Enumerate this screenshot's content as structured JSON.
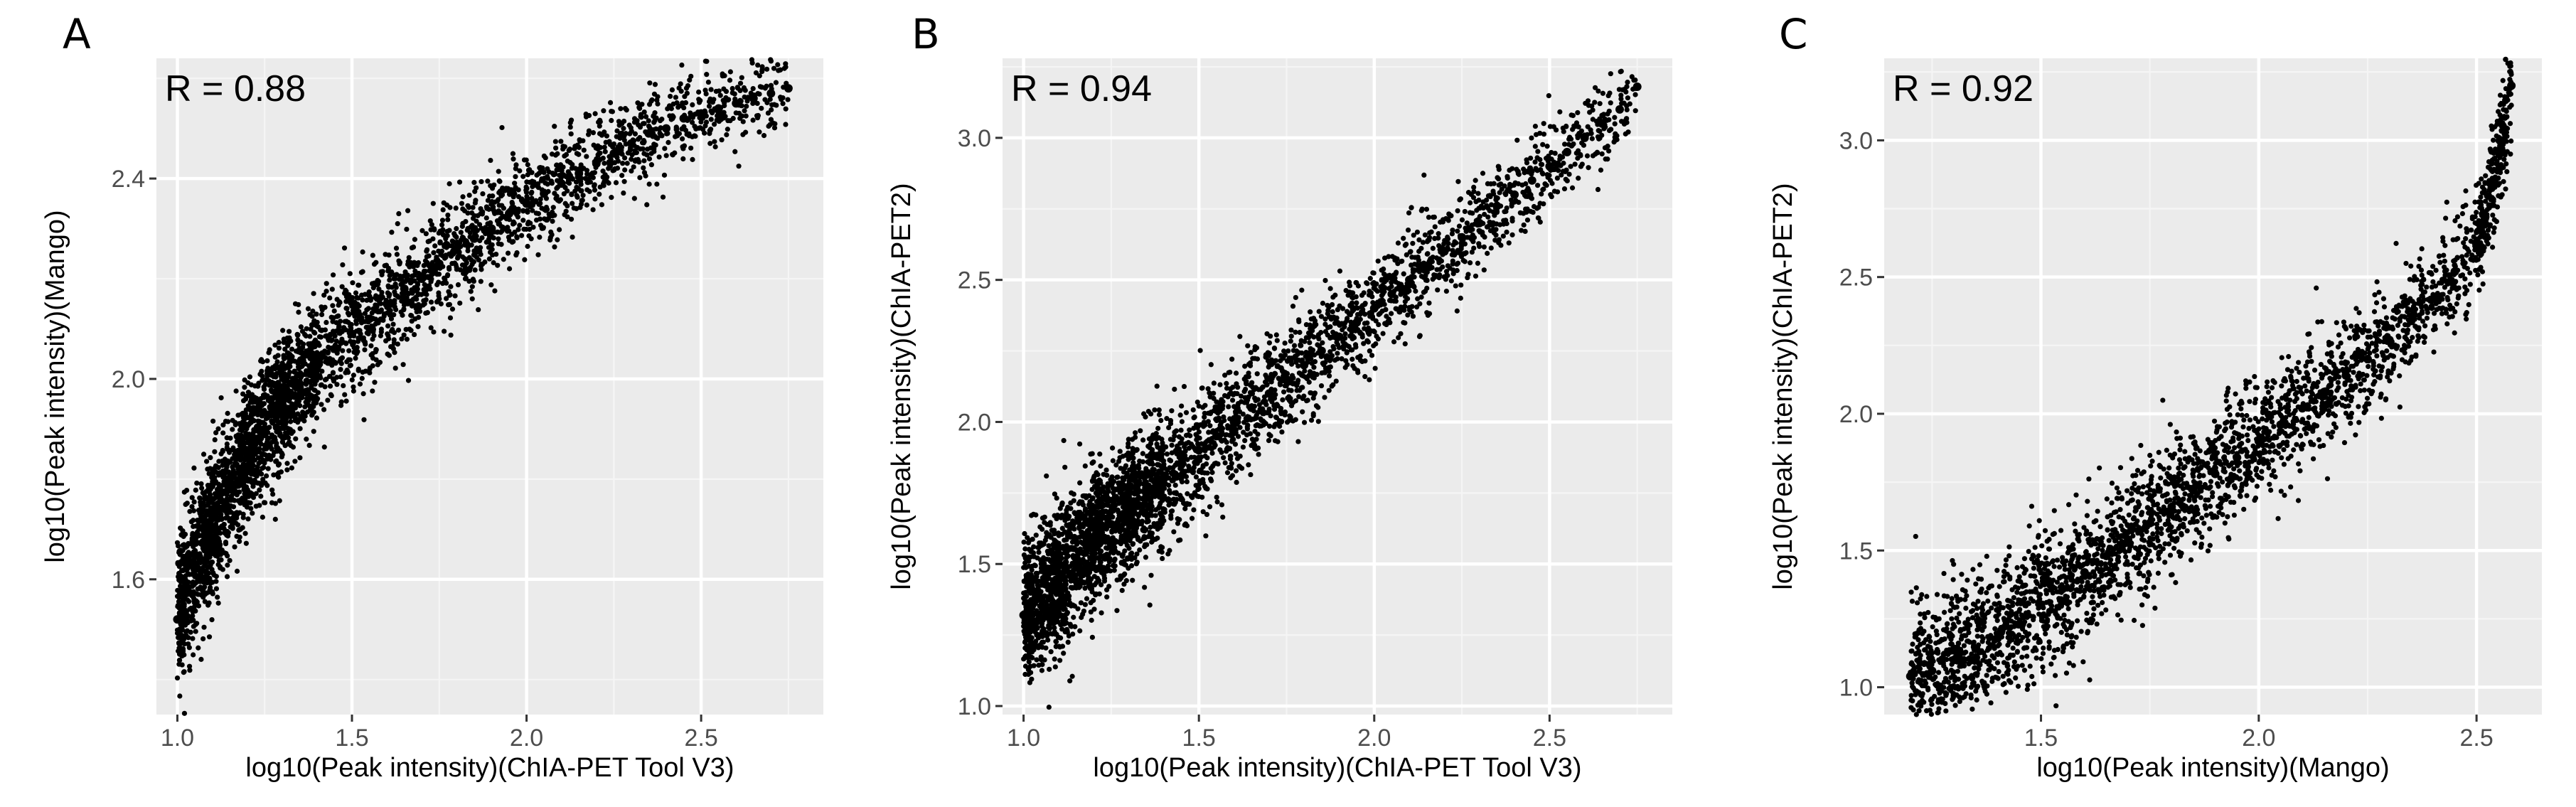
{
  "chart_data": [
    {
      "type": "scatter",
      "panel_label": "A",
      "annotation": "R = 0.88",
      "xlabel": "log10(Peak intensity)(ChIA-PET Tool V3)",
      "ylabel": "log10(Peak intensity)(Mango)",
      "xlim": [
        0.94,
        2.85
      ],
      "ylim": [
        1.33,
        2.64
      ],
      "xticks": [
        1.0,
        1.5,
        2.0,
        2.5
      ],
      "xtick_labels": [
        "1.0",
        "1.5",
        "2.0",
        "2.5"
      ],
      "yticks": [
        1.6,
        2.0,
        2.4
      ],
      "ytick_labels": [
        "1.6",
        "2.0",
        "2.4"
      ],
      "grid": true,
      "correlation": 0.88,
      "x": [
        1.0,
        1.02,
        1.05,
        1.08,
        1.1,
        1.12,
        1.15,
        1.18,
        1.2,
        1.22,
        1.25,
        1.28,
        1.3,
        1.32,
        1.35,
        1.38,
        1.4,
        1.45,
        1.5,
        1.55,
        1.6,
        1.65,
        1.7,
        1.75,
        1.8,
        1.85,
        1.9,
        1.95,
        2.0,
        2.05,
        2.1,
        2.15,
        2.2,
        2.25,
        2.3,
        2.35,
        2.4,
        2.45,
        2.5,
        2.55,
        2.6,
        2.65,
        2.7,
        2.75
      ],
      "y": [
        1.52,
        1.58,
        1.62,
        1.66,
        1.7,
        1.74,
        1.78,
        1.82,
        1.85,
        1.87,
        1.9,
        1.93,
        1.95,
        1.97,
        1.99,
        2.01,
        2.03,
        2.06,
        2.09,
        2.12,
        2.15,
        2.18,
        2.2,
        2.23,
        2.26,
        2.28,
        2.3,
        2.33,
        2.35,
        2.37,
        2.39,
        2.41,
        2.43,
        2.45,
        2.47,
        2.49,
        2.5,
        2.52,
        2.53,
        2.54,
        2.55,
        2.56,
        2.57,
        2.58
      ],
      "point_color": "#000000"
    },
    {
      "type": "scatter",
      "panel_label": "B",
      "annotation": "R = 0.94",
      "xlabel": "log10(Peak intensity)(ChIA-PET Tool V3)",
      "ylabel": "log10(Peak intensity)(ChIA-PET2)",
      "xlim": [
        0.94,
        2.85
      ],
      "ylim": [
        0.97,
        3.28
      ],
      "xticks": [
        1.0,
        1.5,
        2.0,
        2.5
      ],
      "xtick_labels": [
        "1.0",
        "1.5",
        "2.0",
        "2.5"
      ],
      "yticks": [
        1.0,
        1.5,
        2.0,
        2.5,
        3.0
      ],
      "ytick_labels": [
        "1.0",
        "1.5",
        "2.0",
        "2.5",
        "3.0"
      ],
      "grid": true,
      "correlation": 0.94,
      "x": [
        1.0,
        1.02,
        1.05,
        1.08,
        1.1,
        1.12,
        1.15,
        1.18,
        1.2,
        1.22,
        1.25,
        1.28,
        1.3,
        1.32,
        1.35,
        1.38,
        1.4,
        1.45,
        1.5,
        1.55,
        1.6,
        1.65,
        1.7,
        1.75,
        1.8,
        1.85,
        1.9,
        1.95,
        2.0,
        2.05,
        2.1,
        2.15,
        2.2,
        2.25,
        2.3,
        2.35,
        2.4,
        2.45,
        2.5,
        2.55,
        2.6,
        2.65,
        2.7,
        2.75
      ],
      "y": [
        1.32,
        1.35,
        1.38,
        1.42,
        1.45,
        1.48,
        1.52,
        1.56,
        1.58,
        1.61,
        1.64,
        1.67,
        1.7,
        1.72,
        1.75,
        1.78,
        1.8,
        1.85,
        1.9,
        1.95,
        2.0,
        2.05,
        2.1,
        2.15,
        2.2,
        2.25,
        2.3,
        2.35,
        2.4,
        2.45,
        2.5,
        2.55,
        2.6,
        2.65,
        2.7,
        2.76,
        2.8,
        2.85,
        2.9,
        2.95,
        3.0,
        3.05,
        3.1,
        3.18
      ],
      "point_color": "#000000"
    },
    {
      "type": "scatter",
      "panel_label": "C",
      "annotation": "R = 0.92",
      "xlabel": "log10(Peak intensity)(Mango)",
      "ylabel": "log10(Peak intensity)(ChIA-PET2)",
      "xlim": [
        1.14,
        2.65
      ],
      "ylim": [
        0.9,
        3.3
      ],
      "xticks": [
        1.5,
        2.0,
        2.5
      ],
      "xtick_labels": [
        "1.5",
        "2.0",
        "2.5"
      ],
      "yticks": [
        1.0,
        1.5,
        2.0,
        2.5,
        3.0
      ],
      "ytick_labels": [
        "1.0",
        "1.5",
        "2.0",
        "2.5",
        "3.0"
      ],
      "grid": true,
      "correlation": 0.92,
      "x": [
        1.2,
        1.25,
        1.3,
        1.35,
        1.4,
        1.45,
        1.5,
        1.55,
        1.6,
        1.65,
        1.7,
        1.75,
        1.8,
        1.85,
        1.9,
        1.95,
        2.0,
        2.05,
        2.1,
        2.15,
        2.2,
        2.25,
        2.3,
        2.35,
        2.4,
        2.45,
        2.5,
        2.52,
        2.54,
        2.56,
        2.58
      ],
      "y": [
        1.04,
        1.06,
        1.1,
        1.14,
        1.18,
        1.23,
        1.3,
        1.36,
        1.42,
        1.48,
        1.54,
        1.6,
        1.66,
        1.72,
        1.78,
        1.84,
        1.9,
        1.96,
        2.02,
        2.08,
        2.14,
        2.2,
        2.27,
        2.34,
        2.42,
        2.52,
        2.62,
        2.72,
        2.85,
        3.0,
        3.2
      ],
      "point_color": "#000000"
    }
  ]
}
